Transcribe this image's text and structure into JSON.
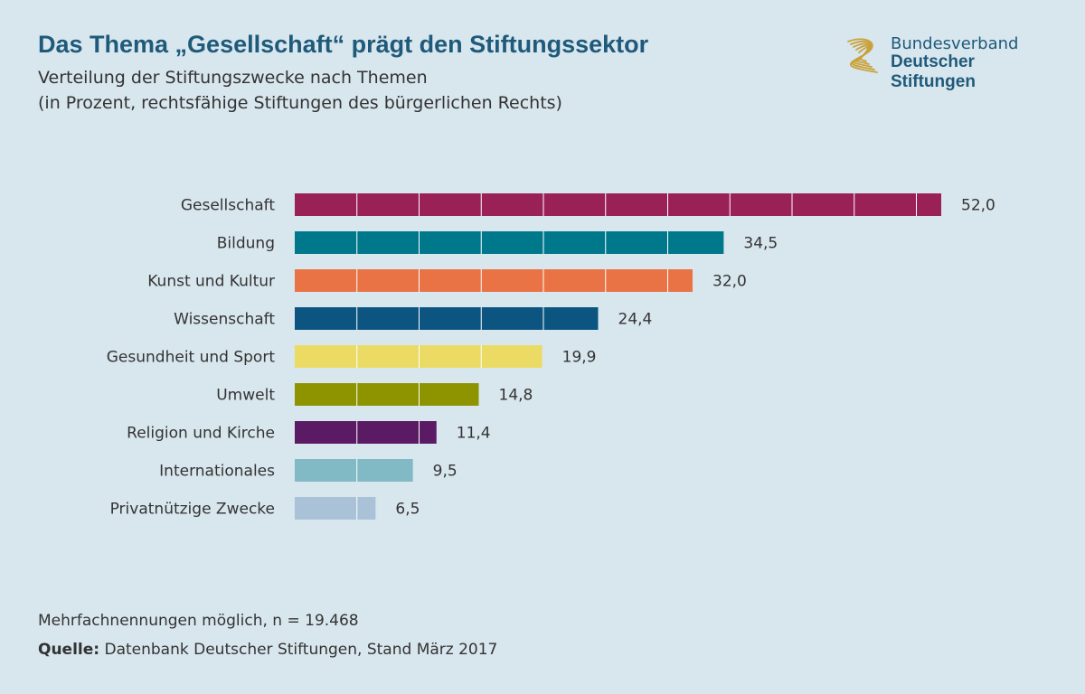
{
  "header": {
    "title": "Das Thema „Gesellschaft“ prägt den Stiftungssektor",
    "subtitle_line1": "Verteilung der Stiftungszwecke nach Themen",
    "subtitle_line2": "(in Prozent, rechtsfähige Stiftungen des bürgerlichen Rechts)"
  },
  "logo": {
    "line1": "Bundesverband",
    "line2": "Deutscher Stiftungen",
    "color": "#c9a23a"
  },
  "chart_data": {
    "type": "bar",
    "orientation": "horizontal",
    "categories": [
      "Gesellschaft",
      "Bildung",
      "Kunst und Kultur",
      "Wissenschaft",
      "Gesundheit und Sport",
      "Umwelt",
      "Religion und Kirche",
      "Internationales",
      "Privatnützige Zwecke"
    ],
    "values": [
      52.0,
      34.5,
      32.0,
      24.4,
      19.9,
      14.8,
      11.4,
      9.5,
      6.5
    ],
    "value_labels": [
      "52,0",
      "34,5",
      "32,0",
      "24,4",
      "19,9",
      "14,8",
      "11,4",
      "9,5",
      "6,5"
    ],
    "colors": [
      "#9a2156",
      "#00788c",
      "#ea7346",
      "#0b5580",
      "#ebdb65",
      "#8d9400",
      "#5b1a64",
      "#81b9c5",
      "#aac2d8"
    ],
    "gridlines_every": 5,
    "xlim": [
      0,
      55
    ]
  },
  "footer": {
    "note": "Mehrfachnennungen möglich, n = 19.468",
    "source_label": "Quelle:",
    "source_text": " Datenbank Deutscher Stiftungen, Stand März 2017"
  }
}
